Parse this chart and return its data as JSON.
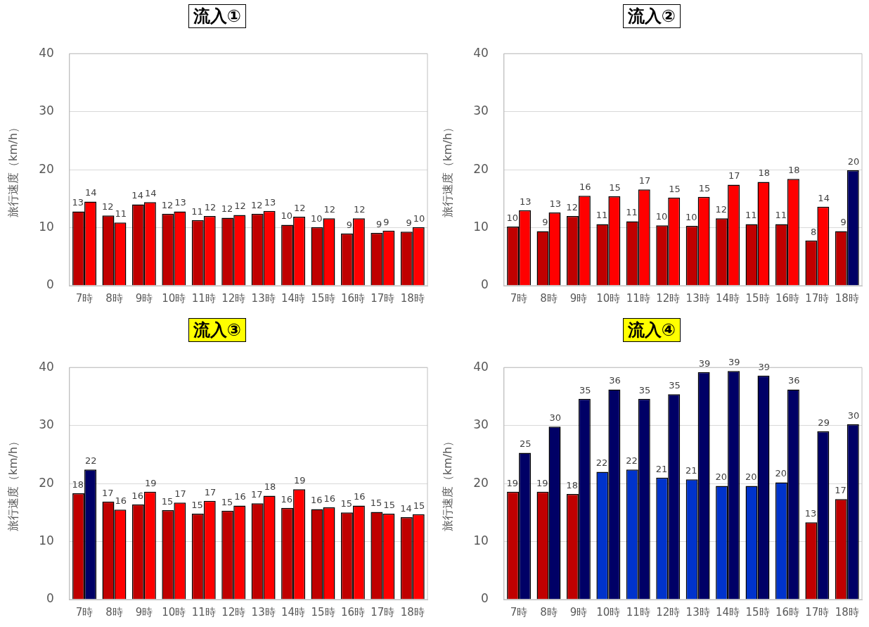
{
  "chart_data": [
    {
      "type": "bar",
      "title": "流入①",
      "ylabel": "旅行速度（km/h）",
      "categories": [
        "7時",
        "8時",
        "9時",
        "10時",
        "11時",
        "12時",
        "13時",
        "14時",
        "15時",
        "16時",
        "17時",
        "18時"
      ],
      "ylim": [
        0,
        40
      ],
      "yticks": [
        0,
        10,
        20,
        30,
        40
      ],
      "grid": "y",
      "series": [
        {
          "color": "#c00000",
          "values": [
            12.8,
            12.1,
            14.0,
            12.4,
            11.3,
            11.7,
            12.4,
            10.5,
            10.1,
            9.0,
            9.1,
            9.3
          ],
          "value_labels": [
            "13",
            "12",
            "14",
            "12",
            "11",
            "12",
            "12",
            "10",
            "10",
            "9",
            "9",
            "9"
          ]
        },
        {
          "color": "#ff0000",
          "values": [
            14.5,
            10.9,
            14.4,
            12.8,
            12.0,
            12.2,
            12.9,
            11.9,
            11.6,
            11.6,
            9.5,
            10.1
          ],
          "value_labels": [
            "14",
            "11",
            "14",
            "13",
            "12",
            "12",
            "13",
            "12",
            "12",
            "12",
            "9",
            "10"
          ]
        }
      ]
    },
    {
      "type": "bar",
      "title": "流入②",
      "ylabel": "旅行速度（km/h）",
      "categories": [
        "7時",
        "8時",
        "9時",
        "10時",
        "11時",
        "12時",
        "13時",
        "14時",
        "15時",
        "16時",
        "17時",
        "18時"
      ],
      "ylim": [
        0,
        40
      ],
      "yticks": [
        0,
        10,
        20,
        30,
        40
      ],
      "grid": "y",
      "series": [
        {
          "color": "#c00000",
          "values": [
            10.2,
            9.4,
            12.0,
            10.6,
            11.1,
            10.4,
            10.3,
            11.6,
            10.6,
            10.6,
            7.8,
            9.4
          ],
          "value_labels": [
            "10",
            "9",
            "12",
            "11",
            "11",
            "10",
            "10",
            "12",
            "11",
            "11",
            "8",
            "9"
          ]
        },
        {
          "colors": [
            "#ff0000",
            "#ff0000",
            "#ff0000",
            "#ff0000",
            "#ff0000",
            "#ff0000",
            "#ff0000",
            "#ff0000",
            "#ff0000",
            "#ff0000",
            "#ff0000",
            "#000066"
          ],
          "values": [
            13.0,
            12.6,
            15.5,
            15.4,
            16.6,
            15.2,
            15.3,
            17.4,
            17.9,
            18.4,
            13.6,
            19.9
          ],
          "value_labels": [
            "13",
            "13",
            "16",
            "15",
            "17",
            "15",
            "15",
            "17",
            "18",
            "18",
            "14",
            "20"
          ]
        }
      ]
    },
    {
      "type": "bar",
      "title": "流入③",
      "ylabel": "旅行速度（km/h）",
      "categories": [
        "7時",
        "8時",
        "9時",
        "10時",
        "11時",
        "12時",
        "13時",
        "14時",
        "15時",
        "16時",
        "17時",
        "18時"
      ],
      "ylim": [
        0,
        40
      ],
      "yticks": [
        0,
        10,
        20,
        30,
        40
      ],
      "grid": "y",
      "series": [
        {
          "color": "#c00000",
          "values": [
            18.3,
            16.9,
            16.4,
            15.4,
            14.8,
            15.3,
            16.6,
            15.8,
            15.6,
            15.0,
            15.1,
            14.2
          ],
          "value_labels": [
            "18",
            "17",
            "16",
            "15",
            "15",
            "15",
            "17",
            "16",
            "16",
            "15",
            "15",
            "14"
          ]
        },
        {
          "colors": [
            "#000066",
            "#ff0000",
            "#ff0000",
            "#ff0000",
            "#ff0000",
            "#ff0000",
            "#ff0000",
            "#ff0000",
            "#ff0000",
            "#ff0000",
            "#ff0000",
            "#ff0000"
          ],
          "values": [
            22.4,
            15.5,
            18.6,
            16.7,
            17.0,
            16.2,
            17.9,
            19.0,
            15.9,
            16.2,
            14.8,
            14.7
          ],
          "value_labels": [
            "22",
            "16",
            "19",
            "17",
            "17",
            "16",
            "18",
            "19",
            "16",
            "16",
            "15",
            "15"
          ]
        }
      ]
    },
    {
      "type": "bar",
      "title": "流入④",
      "ylabel": "旅行速度（km/h）",
      "categories": [
        "7時",
        "8時",
        "9時",
        "10時",
        "11時",
        "12時",
        "13時",
        "14時",
        "15時",
        "16時",
        "17時",
        "18時"
      ],
      "ylim": [
        0,
        40
      ],
      "yticks": [
        0,
        10,
        20,
        30,
        40
      ],
      "grid": "y",
      "series": [
        {
          "colors": [
            "#c00000",
            "#c00000",
            "#c00000",
            "#0033cc",
            "#0033cc",
            "#0033cc",
            "#0033cc",
            "#0033cc",
            "#0033cc",
            "#0033cc",
            "#c00000",
            "#c00000"
          ],
          "values": [
            18.6,
            18.6,
            18.2,
            22.0,
            22.4,
            21.0,
            20.7,
            19.6,
            19.6,
            20.2,
            13.3,
            17.3
          ],
          "value_labels": [
            "19",
            "19",
            "18",
            "22",
            "22",
            "21",
            "21",
            "20",
            "20",
            "20",
            "13",
            "17"
          ]
        },
        {
          "color": "#000066",
          "values": [
            25.3,
            29.8,
            34.6,
            36.2,
            34.6,
            35.4,
            39.2,
            39.4,
            38.6,
            36.2,
            29.0,
            30.2
          ],
          "value_labels": [
            "25",
            "30",
            "35",
            "36",
            "35",
            "35",
            "39",
            "39",
            "39",
            "36",
            "29",
            "30"
          ]
        }
      ]
    }
  ]
}
